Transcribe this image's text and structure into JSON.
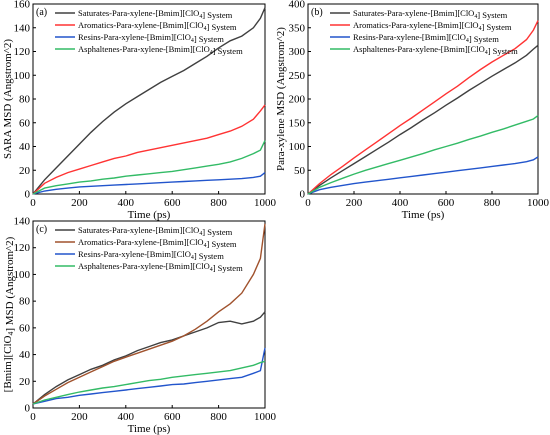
{
  "chart_data": [
    {
      "type": "line",
      "panel_label": "(a)",
      "xlabel": "Time (ps)",
      "ylabel": "SARA MSD (Angstrom^2)",
      "xlim": [
        0,
        1000
      ],
      "ylim": [
        0,
        160
      ],
      "xticks": [
        0,
        200,
        400,
        600,
        800,
        1000
      ],
      "yticks": [
        0,
        20,
        40,
        60,
        80,
        100,
        120,
        140,
        160
      ],
      "legend_position": "top-left",
      "x": [
        0,
        50,
        100,
        150,
        200,
        250,
        300,
        350,
        400,
        450,
        500,
        550,
        600,
        650,
        700,
        750,
        800,
        850,
        900,
        950,
        980,
        1000
      ],
      "series": [
        {
          "name": "Saturates-Para-xylene-[Bmim][ClO4] System",
          "color": "#404040",
          "values": [
            0,
            12,
            22,
            32,
            42,
            52,
            61,
            69,
            76,
            82,
            88,
            94,
            99,
            104,
            110,
            116,
            123,
            129,
            133,
            140,
            148,
            157
          ]
        },
        {
          "name": "Aromatics-Para-xylene-[Bmim][ClO4] System",
          "color": "#ff3333",
          "values": [
            0,
            9,
            14,
            18,
            21,
            24,
            27,
            30,
            32,
            35,
            37,
            39,
            41,
            43,
            45,
            47,
            50,
            53,
            57,
            63,
            70,
            75
          ]
        },
        {
          "name": "Resins-Para-xylene-[Bmim][ClO4] System",
          "color": "#2255cc",
          "values": [
            0,
            2.5,
            4,
            5,
            6,
            6.5,
            7,
            7.5,
            8,
            8.5,
            9,
            9.5,
            10,
            10.5,
            11,
            11.5,
            12,
            12.5,
            13,
            14,
            15,
            18
          ]
        },
        {
          "name": "Asphaltenes-Para-xylene-[Bmim][ClO4] System",
          "color": "#33bb66",
          "values": [
            0,
            5,
            7,
            8.5,
            10,
            11,
            12.5,
            13.5,
            15,
            16,
            17,
            18,
            19,
            20.5,
            22,
            23.5,
            25,
            27,
            30,
            34,
            37,
            45
          ]
        }
      ]
    },
    {
      "type": "line",
      "panel_label": "(b)",
      "xlabel": "Time (ps)",
      "ylabel": "Para-xylene MSD (Angstrom^2)",
      "xlim": [
        0,
        1000
      ],
      "ylim": [
        0,
        400
      ],
      "xticks": [
        0,
        200,
        400,
        600,
        800,
        1000
      ],
      "yticks": [
        0,
        50,
        100,
        150,
        200,
        250,
        300,
        350,
        400
      ],
      "legend_position": "top-left",
      "x": [
        0,
        50,
        100,
        150,
        200,
        250,
        300,
        350,
        400,
        450,
        500,
        550,
        600,
        650,
        700,
        750,
        800,
        850,
        900,
        950,
        980,
        1000
      ],
      "series": [
        {
          "name": "Saturates-Para-xylene-[Bmim][ClO4] System",
          "color": "#404040",
          "values": [
            0,
            18,
            34,
            49,
            64,
            79,
            94,
            109,
            125,
            140,
            156,
            171,
            187,
            202,
            218,
            233,
            248,
            262,
            276,
            292,
            305,
            313
          ]
        },
        {
          "name": "Aromatics-Para-xylene-[Bmim][ClO4] System",
          "color": "#ff3333",
          "values": [
            0,
            22,
            41,
            58,
            76,
            93,
            110,
            127,
            144,
            160,
            177,
            194,
            211,
            227,
            245,
            262,
            278,
            292,
            306,
            325,
            345,
            365
          ]
        },
        {
          "name": "Resins-Para-xylene-[Bmim][ClO4] System",
          "color": "#2255cc",
          "values": [
            0,
            9,
            14,
            18,
            22,
            25,
            28,
            31,
            34,
            37,
            40,
            43,
            46,
            49,
            52,
            55,
            58,
            61,
            64,
            68,
            72,
            78
          ]
        },
        {
          "name": "Asphaltenes-Para-xylene-[Bmim][ClO4] System",
          "color": "#33bb66",
          "values": [
            0,
            14,
            24,
            33,
            42,
            50,
            57,
            64,
            71,
            78,
            85,
            93,
            100,
            107,
            115,
            122,
            130,
            137,
            145,
            153,
            158,
            165
          ]
        }
      ]
    },
    {
      "type": "line",
      "panel_label": "(c)",
      "xlabel": "Time (ps)",
      "ylabel": "[Bmim][ClO4] MSD (Angstrom^2)",
      "xlim": [
        0,
        1000
      ],
      "ylim": [
        0,
        140
      ],
      "xticks": [
        0,
        200,
        400,
        600,
        800,
        1000
      ],
      "yticks": [
        0,
        20,
        40,
        60,
        80,
        100,
        120,
        140
      ],
      "legend_position": "top-left",
      "x": [
        0,
        50,
        100,
        150,
        200,
        250,
        300,
        350,
        400,
        450,
        500,
        550,
        600,
        650,
        700,
        750,
        800,
        850,
        900,
        950,
        980,
        1000
      ],
      "series": [
        {
          "name": "Saturates-Para-xylene-[Bmim][ClO4] System",
          "color": "#404040",
          "values": [
            3,
            10,
            16,
            21,
            25,
            29,
            32,
            36,
            39,
            43,
            46,
            49,
            51,
            54,
            57,
            60,
            64,
            65,
            63,
            65,
            68,
            72
          ]
        },
        {
          "name": "Aromatics-Para-xylene-[Bmim][ClO4] System",
          "color": "#a0522d",
          "values": [
            3,
            9,
            14,
            19,
            23,
            27,
            31,
            35,
            38,
            41,
            44,
            47,
            50,
            54,
            59,
            65,
            72,
            78,
            86,
            100,
            112,
            138
          ]
        },
        {
          "name": "Resins-Para-xylene-[Bmim][ClO4] System",
          "color": "#2255cc",
          "values": [
            3,
            5,
            7,
            8,
            9.5,
            10.5,
            11.5,
            12.5,
            13.5,
            14.5,
            15.5,
            16.5,
            17.5,
            18,
            19,
            20,
            21,
            22,
            23,
            26,
            28,
            45
          ]
        },
        {
          "name": "Asphaltenes-Para-xylene-[Bmim][ClO4] System",
          "color": "#33bb66",
          "values": [
            3,
            6,
            8,
            10,
            12,
            13.5,
            15,
            16,
            17.5,
            19,
            20.5,
            21.5,
            23,
            24,
            25,
            26,
            27,
            28,
            30,
            32,
            34,
            35
          ]
        }
      ]
    }
  ]
}
